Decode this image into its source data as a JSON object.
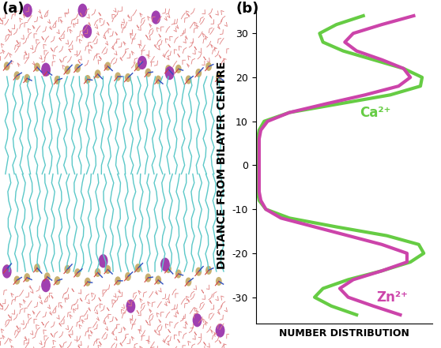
{
  "panel_labels": [
    "(a)",
    "(b)"
  ],
  "chart_data": {
    "type": "line",
    "orientation": "horizontal",
    "y_label": "DISTANCE FROM BILAYER CENTRE",
    "x_label": "NUMBER DISTRIBUTION",
    "y": [
      -34,
      -32,
      -30,
      -28,
      -26,
      -24,
      -22,
      -20,
      -18,
      -16,
      -14,
      -12,
      -10,
      -8,
      -6,
      -4,
      -2,
      0,
      2,
      4,
      6,
      8,
      10,
      12,
      14,
      16,
      18,
      20,
      22,
      24,
      26,
      28,
      30,
      32,
      34
    ],
    "series": [
      {
        "name": "Ca²⁺",
        "color": "#66cc44",
        "values": [
          0.6,
          0.45,
          0.35,
          0.4,
          0.55,
          0.75,
          0.92,
          1.0,
          0.97,
          0.78,
          0.48,
          0.2,
          0.06,
          0.02,
          0.01,
          0.01,
          0.01,
          0.01,
          0.01,
          0.01,
          0.01,
          0.02,
          0.05,
          0.2,
          0.5,
          0.8,
          0.98,
          0.99,
          0.88,
          0.7,
          0.52,
          0.4,
          0.38,
          0.48,
          0.64
        ]
      },
      {
        "name": "Zn²⁺",
        "color": "#cc44aa",
        "values": [
          0.86,
          0.7,
          0.55,
          0.5,
          0.58,
          0.75,
          0.9,
          0.9,
          0.75,
          0.55,
          0.35,
          0.15,
          0.06,
          0.03,
          0.02,
          0.02,
          0.02,
          0.02,
          0.02,
          0.02,
          0.02,
          0.03,
          0.07,
          0.2,
          0.42,
          0.65,
          0.85,
          0.92,
          0.88,
          0.75,
          0.6,
          0.53,
          0.58,
          0.75,
          0.94
        ]
      }
    ],
    "ylim": [
      -36,
      36
    ],
    "yticks": [
      -30,
      -20,
      -10,
      0,
      10,
      20,
      30
    ],
    "xlim": [
      0,
      1.05
    ],
    "tick_labels": "y"
  }
}
